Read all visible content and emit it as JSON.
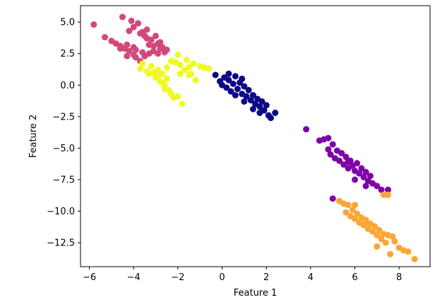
{
  "chart_data": {
    "type": "scatter",
    "xlabel": "Feature 1",
    "ylabel": "Feature 2",
    "xlim": [
      -6.4,
      9.4
    ],
    "ylim": [
      -14.4,
      6.3
    ],
    "grid": false,
    "xticks": [
      -6,
      -4,
      -2,
      0,
      2,
      4,
      6,
      8
    ],
    "yticks": [
      5.0,
      2.5,
      0.0,
      -2.5,
      -5.0,
      -7.5,
      -10.0,
      -12.5
    ],
    "ytick_labels": [
      "5.0",
      "2.5",
      "0.0",
      "−2.5",
      "−5.0",
      "−7.5",
      "−10.0",
      "−12.5"
    ],
    "xtick_labels": [
      "−6",
      "−4",
      "−2",
      "0",
      "2",
      "4",
      "6",
      "8"
    ],
    "series": [
      {
        "color": "#d1497b",
        "points": [
          [
            -5.8,
            4.8
          ],
          [
            -5.3,
            3.8
          ],
          [
            -5.0,
            3.5
          ],
          [
            -4.8,
            3.3
          ],
          [
            -4.6,
            3.1
          ],
          [
            -4.5,
            5.4
          ],
          [
            -4.4,
            2.9
          ],
          [
            -4.3,
            3.2
          ],
          [
            -4.2,
            2.7
          ],
          [
            -4.1,
            5.1
          ],
          [
            -4.0,
            2.4
          ],
          [
            -4.0,
            4.6
          ],
          [
            -3.9,
            2.2
          ],
          [
            -3.8,
            4.9
          ],
          [
            -3.7,
            1.9
          ],
          [
            -3.6,
            2.6
          ],
          [
            -3.6,
            4.2
          ],
          [
            -3.5,
            3.9
          ],
          [
            -3.4,
            4.4
          ],
          [
            -3.3,
            3.2
          ],
          [
            -3.2,
            3.6
          ],
          [
            -3.1,
            2.7
          ],
          [
            -3.0,
            3.9
          ],
          [
            -2.9,
            3.3
          ],
          [
            -2.8,
            2.9
          ],
          [
            -2.7,
            3.0
          ],
          [
            -2.6,
            2.6
          ],
          [
            -2.5,
            2.8
          ],
          [
            -4.6,
            2.9
          ],
          [
            -4.2,
            4.3
          ],
          [
            -3.9,
            2.8
          ],
          [
            -3.5,
            2.3
          ],
          [
            -3.3,
            2.5
          ],
          [
            -3.1,
            3.1
          ],
          [
            -2.9,
            2.5
          ],
          [
            -4.3,
            2.3
          ],
          [
            -4.0,
            3.0
          ],
          [
            -3.7,
            4.1
          ],
          [
            -3.4,
            3.7
          ],
          [
            -2.8,
            3.4
          ]
        ]
      },
      {
        "color": "#f0f921",
        "points": [
          [
            -3.7,
            1.3
          ],
          [
            -3.6,
            1.7
          ],
          [
            -3.4,
            1.1
          ],
          [
            -3.3,
            0.9
          ],
          [
            -3.2,
            1.5
          ],
          [
            -3.0,
            0.6
          ],
          [
            -2.9,
            1.2
          ],
          [
            -2.8,
            0.3
          ],
          [
            -2.7,
            0.9
          ],
          [
            -2.6,
            0.0
          ],
          [
            -2.5,
            1.4
          ],
          [
            -2.4,
            -0.4
          ],
          [
            -2.3,
            -0.7
          ],
          [
            -2.2,
            -1.0
          ],
          [
            -2.1,
            1.8
          ],
          [
            -2.0,
            2.4
          ],
          [
            -1.9,
            1.6
          ],
          [
            -1.8,
            -1.5
          ],
          [
            -1.7,
            1.2
          ],
          [
            -1.6,
            2.0
          ],
          [
            -1.5,
            1.4
          ],
          [
            -1.4,
            0.9
          ],
          [
            -1.3,
            1.7
          ],
          [
            -1.2,
            0.4
          ],
          [
            -1.0,
            1.5
          ],
          [
            -0.8,
            1.4
          ],
          [
            -0.6,
            1.3
          ],
          [
            -3.1,
            1.0
          ],
          [
            -2.9,
            0.7
          ],
          [
            -2.7,
            0.2
          ],
          [
            -2.5,
            0.5
          ],
          [
            -2.3,
            1.9
          ],
          [
            -2.0,
            -0.9
          ],
          [
            -1.9,
            0.9
          ],
          [
            -1.5,
            0.8
          ],
          [
            -2.6,
            -0.3
          ]
        ]
      },
      {
        "color": "#0d0887",
        "points": [
          [
            -0.3,
            0.8
          ],
          [
            -0.1,
            0.3
          ],
          [
            0.0,
            0.0
          ],
          [
            0.1,
            0.6
          ],
          [
            0.2,
            -0.2
          ],
          [
            0.3,
            0.4
          ],
          [
            0.4,
            -0.5
          ],
          [
            0.5,
            0.1
          ],
          [
            0.6,
            0.7
          ],
          [
            0.7,
            -0.3
          ],
          [
            0.8,
            0.2
          ],
          [
            0.9,
            -0.7
          ],
          [
            1.0,
            -0.1
          ],
          [
            1.1,
            -0.9
          ],
          [
            1.2,
            -0.4
          ],
          [
            1.3,
            -1.2
          ],
          [
            1.4,
            -0.8
          ],
          [
            1.5,
            -1.5
          ],
          [
            1.6,
            -1.1
          ],
          [
            1.7,
            -1.7
          ],
          [
            1.8,
            -1.3
          ],
          [
            1.9,
            -2.0
          ],
          [
            2.0,
            -1.6
          ],
          [
            2.1,
            -2.4
          ],
          [
            2.2,
            -2.6
          ],
          [
            2.4,
            -2.2
          ],
          [
            0.6,
            -0.8
          ],
          [
            1.0,
            -1.3
          ],
          [
            1.4,
            -1.9
          ],
          [
            0.3,
            0.9
          ],
          [
            0.9,
            0.5
          ],
          [
            1.7,
            -2.2
          ]
        ]
      },
      {
        "color": "#7e03a8",
        "points": [
          [
            3.8,
            -3.5
          ],
          [
            4.4,
            -4.4
          ],
          [
            4.6,
            -4.3
          ],
          [
            4.8,
            -4.2
          ],
          [
            4.8,
            -5.1
          ],
          [
            4.9,
            -5.5
          ],
          [
            5.0,
            -4.7
          ],
          [
            5.1,
            -5.8
          ],
          [
            5.2,
            -5.2
          ],
          [
            5.3,
            -6.0
          ],
          [
            5.4,
            -5.4
          ],
          [
            5.5,
            -6.3
          ],
          [
            5.6,
            -5.7
          ],
          [
            5.7,
            -6.6
          ],
          [
            5.8,
            -6.0
          ],
          [
            5.9,
            -6.4
          ],
          [
            6.0,
            -6.8
          ],
          [
            6.1,
            -6.2
          ],
          [
            6.2,
            -7.0
          ],
          [
            6.3,
            -6.6
          ],
          [
            6.4,
            -7.3
          ],
          [
            6.5,
            -6.9
          ],
          [
            6.6,
            -7.6
          ],
          [
            6.7,
            -7.2
          ],
          [
            6.8,
            -7.8
          ],
          [
            7.0,
            -8.0
          ],
          [
            7.2,
            -8.3
          ],
          [
            7.5,
            -8.3
          ],
          [
            5.0,
            -9.0
          ],
          [
            6.5,
            -8.0
          ],
          [
            5.7,
            -6.1
          ],
          [
            6.0,
            -7.5
          ]
        ]
      },
      {
        "color": "#fca636",
        "points": [
          [
            5.3,
            -9.2
          ],
          [
            5.5,
            -9.4
          ],
          [
            5.6,
            -10.1
          ],
          [
            5.7,
            -9.5
          ],
          [
            5.8,
            -10.4
          ],
          [
            5.9,
            -9.9
          ],
          [
            6.0,
            -10.6
          ],
          [
            6.1,
            -10.2
          ],
          [
            6.2,
            -10.9
          ],
          [
            6.3,
            -10.5
          ],
          [
            6.4,
            -11.1
          ],
          [
            6.5,
            -10.7
          ],
          [
            6.6,
            -11.4
          ],
          [
            6.7,
            -11.0
          ],
          [
            6.8,
            -11.6
          ],
          [
            6.9,
            -11.2
          ],
          [
            7.0,
            -11.9
          ],
          [
            7.1,
            -11.5
          ],
          [
            7.2,
            -12.2
          ],
          [
            7.3,
            -11.8
          ],
          [
            7.4,
            -12.5
          ],
          [
            7.5,
            -11.9
          ],
          [
            7.6,
            -13.4
          ],
          [
            7.8,
            -12.4
          ],
          [
            8.0,
            -12.9
          ],
          [
            8.2,
            -13.1
          ],
          [
            8.4,
            -13.2
          ],
          [
            8.7,
            -13.8
          ],
          [
            7.5,
            -8.7
          ],
          [
            7.3,
            -8.7
          ],
          [
            6.0,
            -9.5
          ],
          [
            7.0,
            -12.8
          ],
          [
            6.5,
            -10.9
          ],
          [
            7.7,
            -12.0
          ]
        ]
      }
    ]
  }
}
